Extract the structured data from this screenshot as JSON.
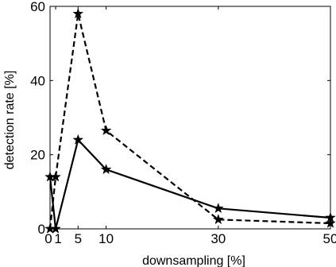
{
  "chart_data": {
    "type": "line",
    "title": "",
    "xlabel": "downsampling [%]",
    "ylabel": "detection rate [%]",
    "xlim": [
      0,
      50
    ],
    "ylim": [
      0,
      60
    ],
    "x_ticks": [
      0,
      1,
      5,
      10,
      30,
      50
    ],
    "x_tick_labels": [
      "0",
      "1",
      "5",
      "10",
      "30",
      "50"
    ],
    "y_ticks": [
      0,
      20,
      40,
      60
    ],
    "y_tick_labels": [
      "0",
      "20",
      "40",
      "60"
    ],
    "grid": false,
    "legend": "none",
    "series": [
      {
        "style": "solid",
        "marker": "star",
        "color": "#000000",
        "x": [
          0,
          1,
          5,
          10,
          30,
          50
        ],
        "y": [
          14,
          0,
          24,
          16,
          5.5,
          3
        ]
      },
      {
        "style": "dashed",
        "marker": "star",
        "color": "#000000",
        "x": [
          0,
          1,
          5,
          10,
          30,
          50
        ],
        "y": [
          0,
          14,
          58,
          26.5,
          2.5,
          1.5
        ]
      }
    ]
  }
}
